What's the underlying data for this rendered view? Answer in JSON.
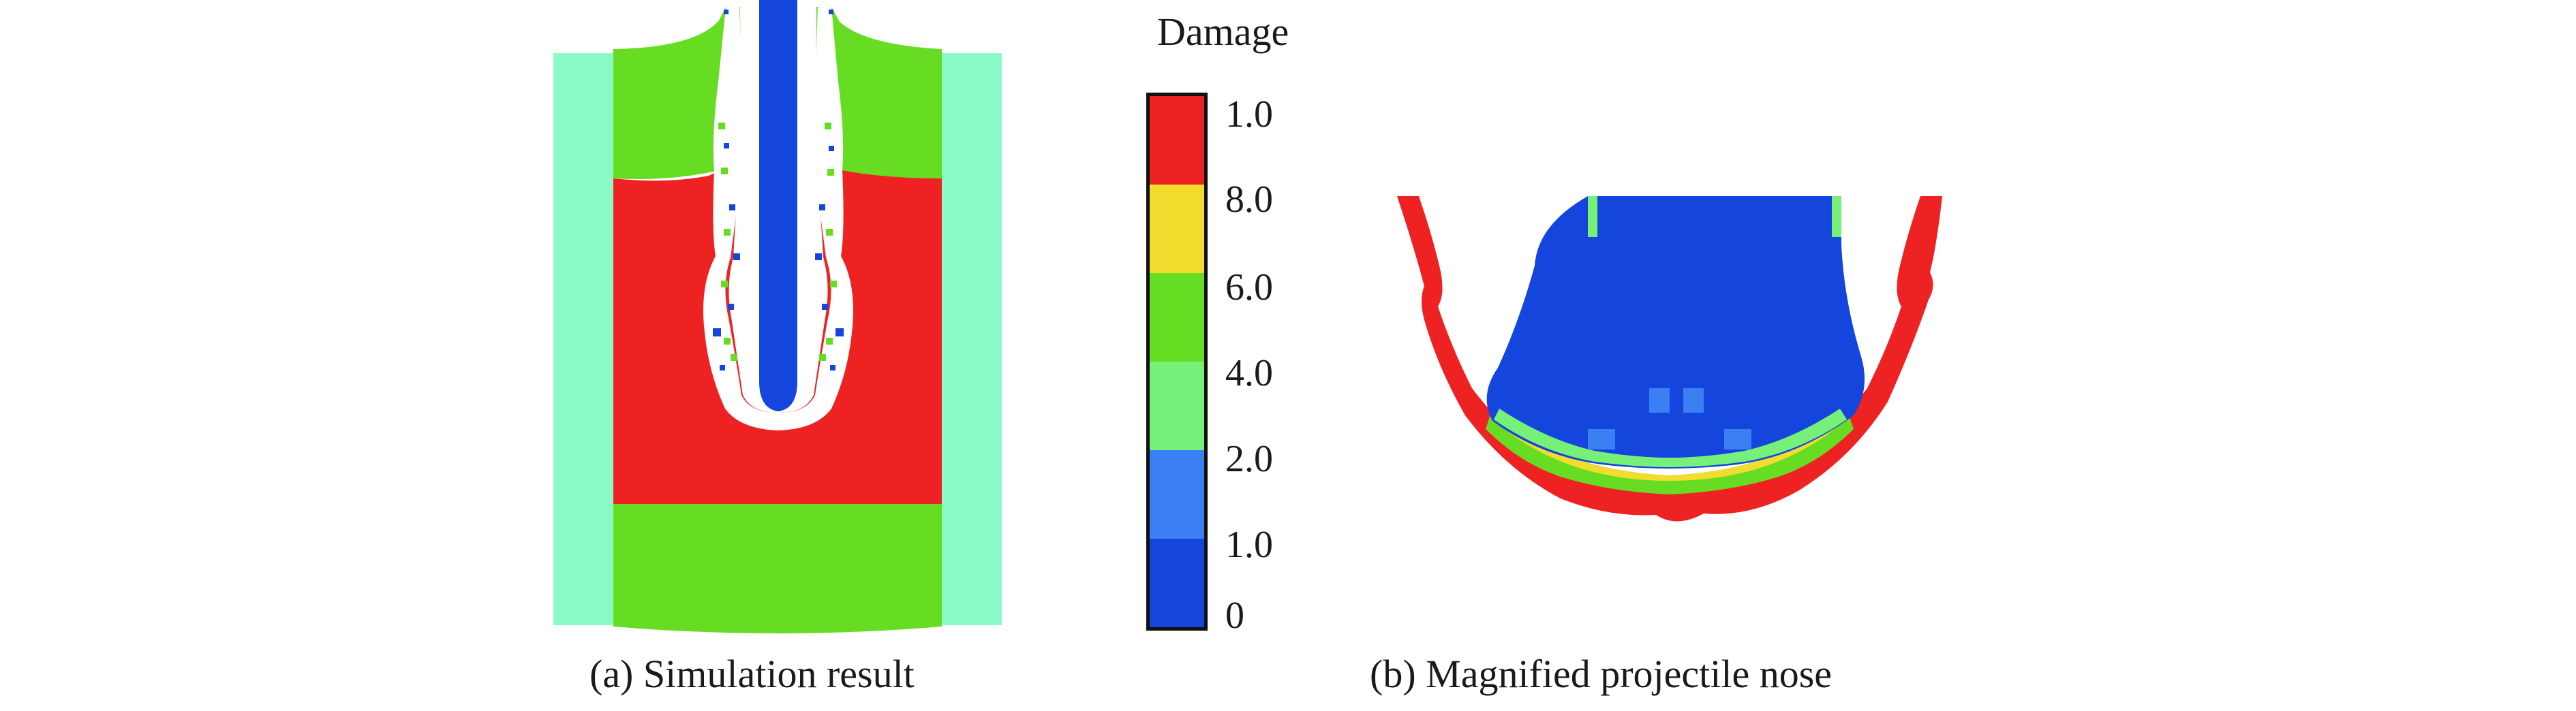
{
  "legend": {
    "title": "Damage",
    "tick_labels": [
      "1.0",
      "8.0",
      "6.0",
      "4.0",
      "2.0",
      "1.0",
      "0"
    ],
    "colors_top_to_bottom": [
      "#ee2222",
      "#f2dc2e",
      "#66dd22",
      "#77f07a",
      "#3b7ff2",
      "#1445dd"
    ]
  },
  "captions": {
    "a": "(a) Simulation result",
    "b": "(b) Magnified projectile nose"
  },
  "colors": {
    "outer_sleeve": "#8cfac8",
    "target_green": "#66dd22",
    "target_red": "#ee2222",
    "projectile_blue": "#1445dd",
    "background": "#ffffff"
  }
}
